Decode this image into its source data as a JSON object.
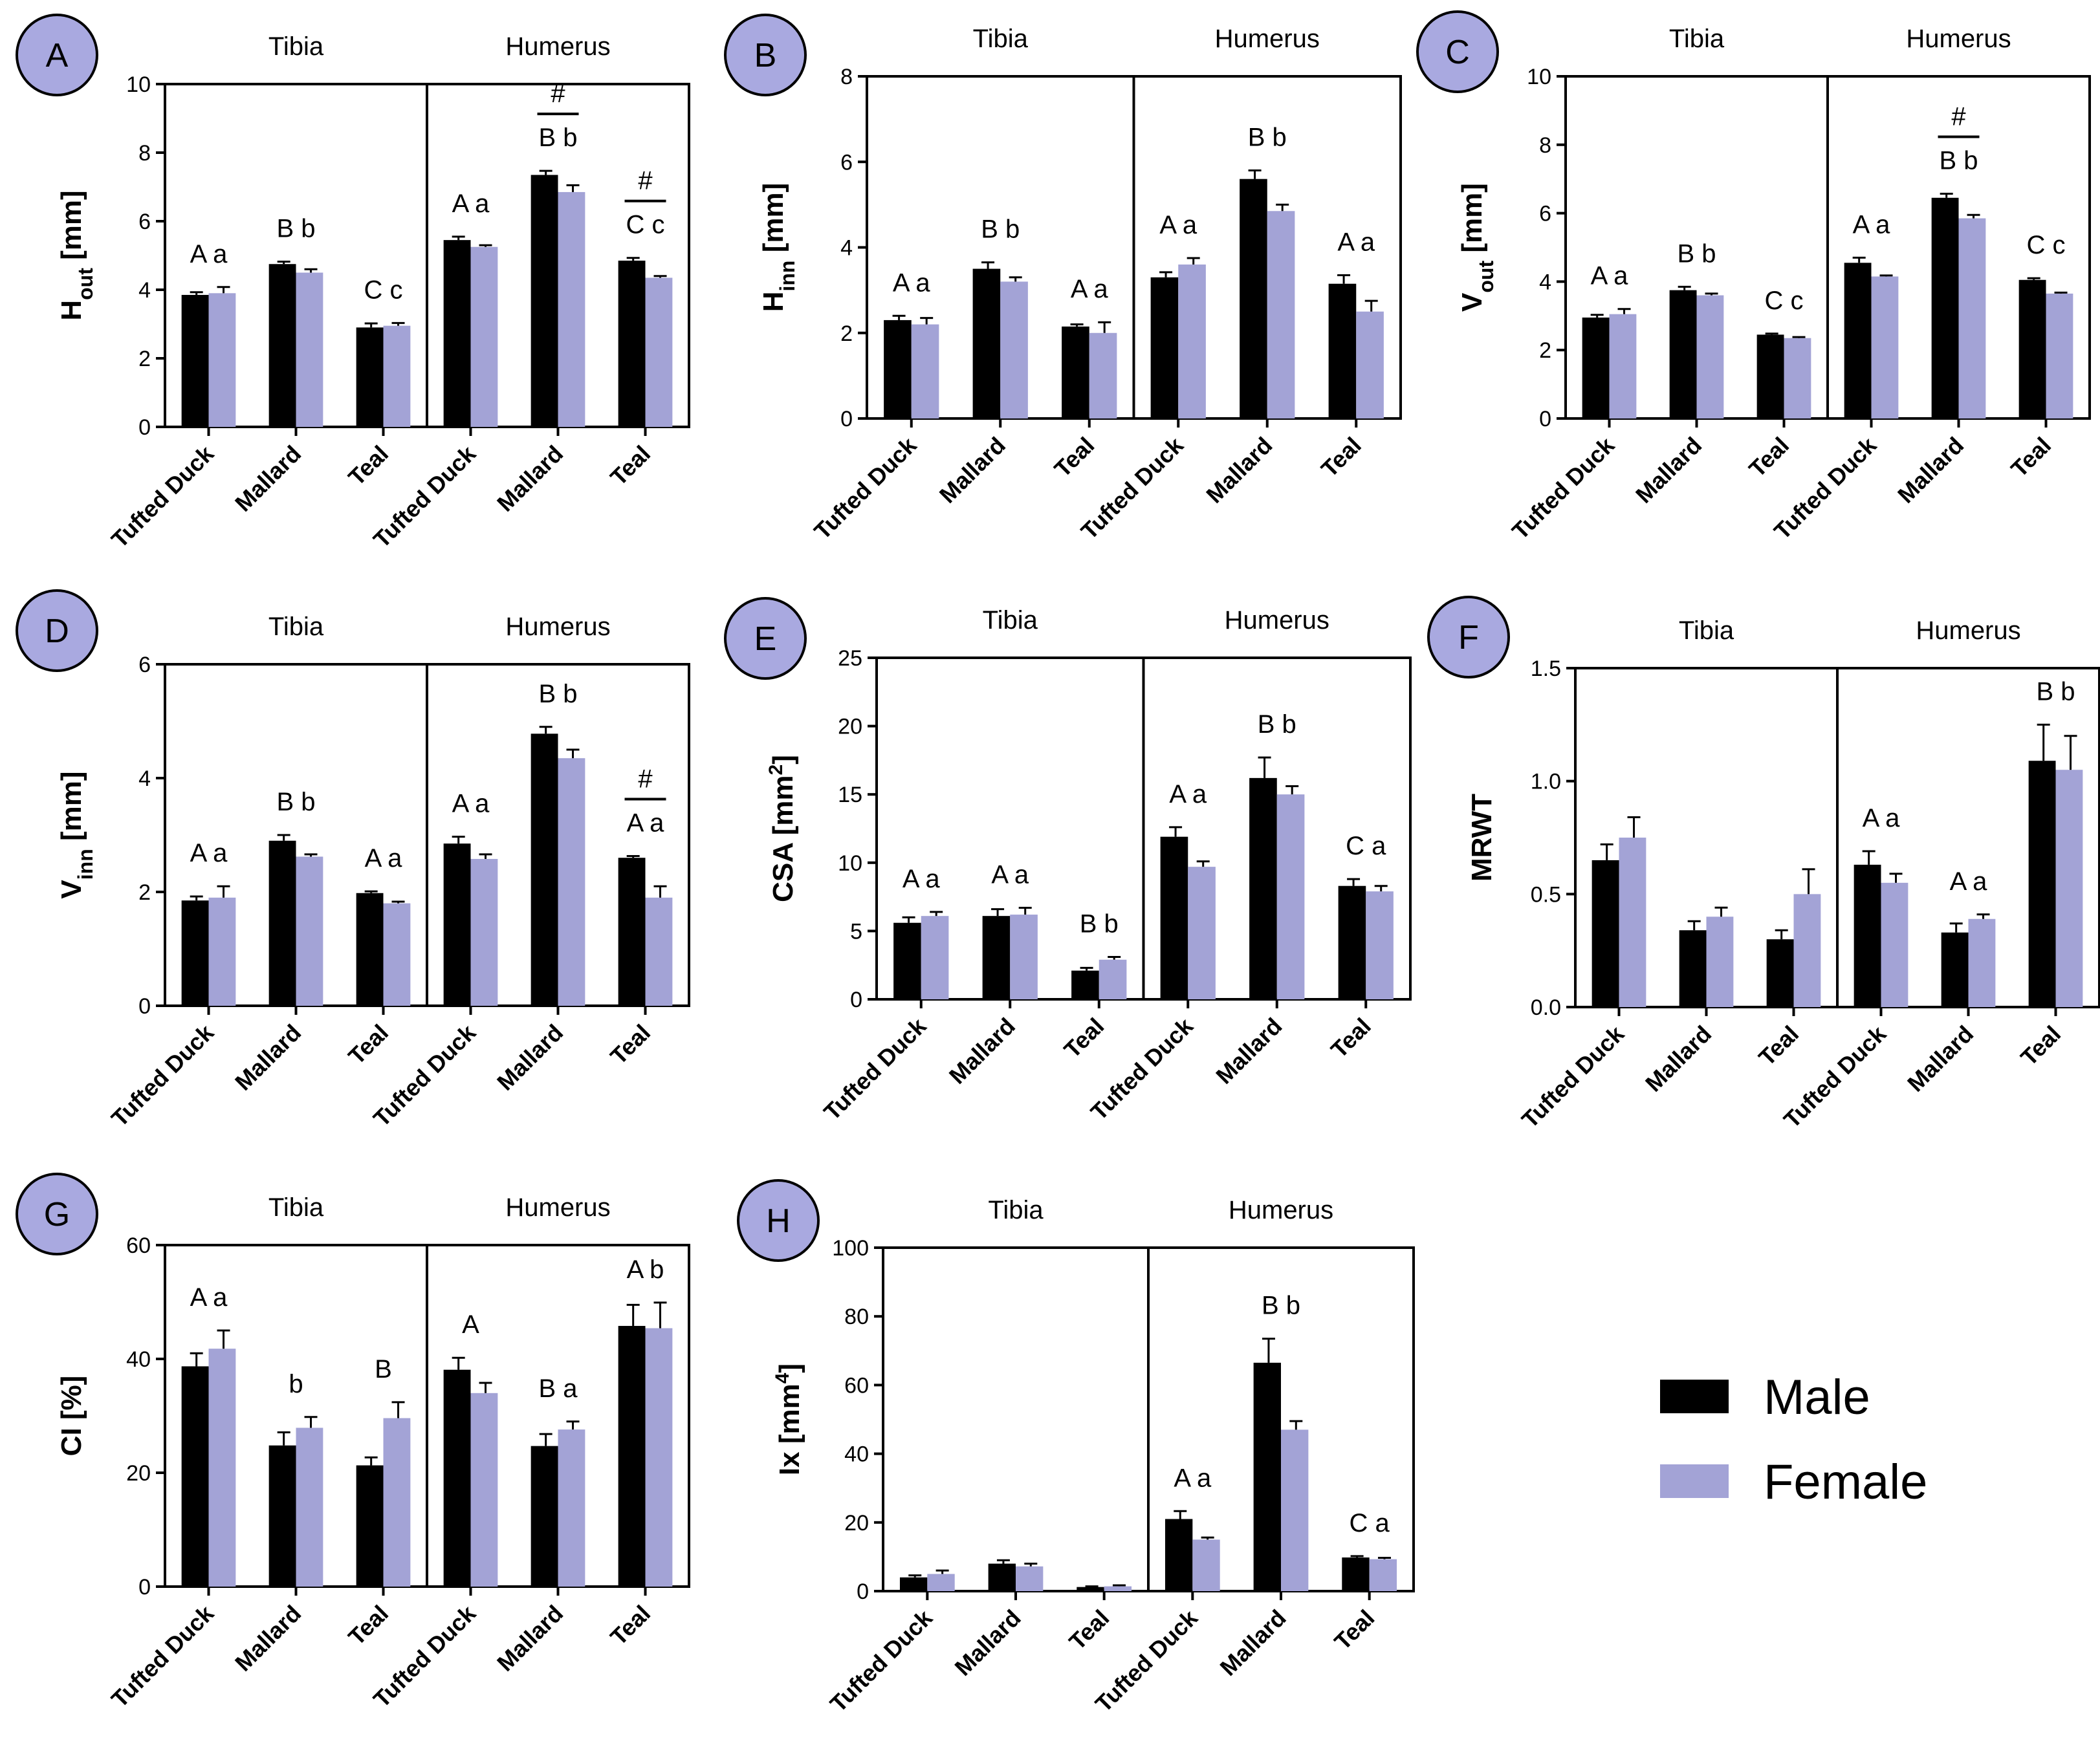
{
  "chart_data": [
    {
      "panel": "A",
      "type": "bar",
      "ylabel": "H",
      "ylabel_sub": "out",
      "ylabel_unit": " [mm]",
      "ylim": [
        0,
        10
      ],
      "yticks": [
        "0",
        "2",
        "4",
        "6",
        "8",
        "10"
      ],
      "groups": [
        "Tibia",
        "Humerus"
      ],
      "categories": [
        "Tufted Duck",
        "Mallard",
        "Teal",
        "Tufted Duck",
        "Mallard",
        "Teal"
      ],
      "series": [
        {
          "name": "Male",
          "values": [
            3.85,
            4.75,
            2.9,
            5.45,
            7.35,
            4.85
          ],
          "errors": [
            0.08,
            0.07,
            0.12,
            0.1,
            0.12,
            0.08
          ]
        },
        {
          "name": "Female",
          "values": [
            3.9,
            4.5,
            2.95,
            5.25,
            6.85,
            4.35
          ],
          "errors": [
            0.18,
            0.1,
            0.08,
            0.05,
            0.2,
            0.05
          ]
        }
      ],
      "letters": [
        "A a",
        "B b",
        "C c",
        "A a",
        "B b",
        "C c"
      ],
      "hash": [
        false,
        false,
        false,
        false,
        true,
        true
      ]
    },
    {
      "panel": "B",
      "type": "bar",
      "ylabel": "H",
      "ylabel_sub": "inn",
      "ylabel_unit": " [mm]",
      "ylim": [
        0,
        8
      ],
      "yticks": [
        "0",
        "2",
        "4",
        "6",
        "8"
      ],
      "groups": [
        "Tibia",
        "Humerus"
      ],
      "categories": [
        "Tufted Duck",
        "Mallard",
        "Teal",
        "Tufted Duck",
        "Mallard",
        "Teal"
      ],
      "series": [
        {
          "name": "Male",
          "values": [
            2.3,
            3.5,
            2.15,
            3.3,
            5.6,
            3.15
          ],
          "errors": [
            0.1,
            0.15,
            0.05,
            0.12,
            0.2,
            0.2
          ]
        },
        {
          "name": "Female",
          "values": [
            2.2,
            3.2,
            2.0,
            3.6,
            4.85,
            2.5
          ],
          "errors": [
            0.15,
            0.1,
            0.25,
            0.15,
            0.15,
            0.25
          ]
        }
      ],
      "letters": [
        "A a",
        "B b",
        "A a",
        "A a",
        "B b",
        "A a"
      ],
      "hash": [
        false,
        false,
        false,
        false,
        false,
        false
      ]
    },
    {
      "panel": "C",
      "type": "bar",
      "ylabel": "V",
      "ylabel_sub": "out",
      "ylabel_unit": " [mm]",
      "ylim": [
        0,
        10
      ],
      "yticks": [
        "0",
        "2",
        "4",
        "6",
        "8",
        "10"
      ],
      "groups": [
        "Tibia",
        "Humerus"
      ],
      "categories": [
        "Tufted Duck",
        "Mallard",
        "Teal",
        "Tufted Duck",
        "Mallard",
        "Teal"
      ],
      "series": [
        {
          "name": "Male",
          "values": [
            2.95,
            3.75,
            2.45,
            4.55,
            6.45,
            4.05
          ],
          "errors": [
            0.08,
            0.1,
            0.03,
            0.15,
            0.12,
            0.05
          ]
        },
        {
          "name": "Female",
          "values": [
            3.05,
            3.6,
            2.35,
            4.15,
            5.85,
            3.65
          ],
          "errors": [
            0.15,
            0.05,
            0.03,
            0.03,
            0.1,
            0.03
          ]
        }
      ],
      "letters": [
        "A a",
        "B b",
        "C c",
        "A a",
        "B b",
        "C c"
      ],
      "hash": [
        false,
        false,
        false,
        false,
        true,
        false
      ]
    },
    {
      "panel": "D",
      "type": "bar",
      "ylabel": "V",
      "ylabel_sub": "inn",
      "ylabel_unit": " [mm]",
      "ylim": [
        0,
        6
      ],
      "yticks": [
        "0",
        "2",
        "4",
        "6"
      ],
      "groups": [
        "Tibia",
        "Humerus"
      ],
      "categories": [
        "Tufted Duck",
        "Mallard",
        "Teal",
        "Tufted Duck",
        "Mallard",
        "Teal"
      ],
      "series": [
        {
          "name": "Male",
          "values": [
            1.85,
            2.9,
            1.98,
            2.85,
            4.78,
            2.6
          ],
          "errors": [
            0.07,
            0.1,
            0.03,
            0.12,
            0.12,
            0.03
          ]
        },
        {
          "name": "Female",
          "values": [
            1.9,
            2.62,
            1.8,
            2.58,
            4.35,
            1.9
          ],
          "errors": [
            0.2,
            0.04,
            0.03,
            0.08,
            0.15,
            0.2
          ]
        }
      ],
      "letters": [
        "A a",
        "B b",
        "A a",
        "A a",
        "B b",
        "A a"
      ],
      "hash": [
        false,
        false,
        false,
        false,
        false,
        true
      ]
    },
    {
      "panel": "E",
      "type": "bar",
      "ylabel": "CSA [mm",
      "ylabel_sup": "2",
      "ylabel_unit": "]",
      "ylim": [
        0,
        25
      ],
      "yticks": [
        "0",
        "5",
        "10",
        "15",
        "20",
        "25"
      ],
      "groups": [
        "Tibia",
        "Humerus"
      ],
      "categories": [
        "Tufted Duck",
        "Mallard",
        "Teal",
        "Tufted Duck",
        "Mallard",
        "Teal"
      ],
      "series": [
        {
          "name": "Male",
          "values": [
            5.6,
            6.1,
            2.1,
            11.9,
            16.2,
            8.3
          ],
          "errors": [
            0.4,
            0.5,
            0.2,
            0.7,
            1.5,
            0.5
          ]
        },
        {
          "name": "Female",
          "values": [
            6.1,
            6.2,
            2.9,
            9.7,
            15.0,
            7.9
          ],
          "errors": [
            0.3,
            0.5,
            0.2,
            0.4,
            0.6,
            0.4
          ]
        }
      ],
      "letters": [
        "A a",
        "A a",
        "B b",
        "A a",
        "B b",
        "C a"
      ],
      "hash": [
        false,
        false,
        false,
        false,
        false,
        false
      ]
    },
    {
      "panel": "F",
      "type": "bar",
      "ylabel": "MRWT",
      "ylim": [
        0,
        1.5
      ],
      "yticks": [
        "0.0",
        "0.5",
        "1.0",
        "1.5"
      ],
      "groups": [
        "Tibia",
        "Humerus"
      ],
      "categories": [
        "Tufted Duck",
        "Mallard",
        "Teal",
        "Tufted Duck",
        "Mallard",
        "Teal"
      ],
      "series": [
        {
          "name": "Male",
          "values": [
            0.65,
            0.34,
            0.3,
            0.63,
            0.33,
            1.09
          ],
          "errors": [
            0.07,
            0.04,
            0.04,
            0.06,
            0.04,
            0.16
          ]
        },
        {
          "name": "Female",
          "values": [
            0.75,
            0.4,
            0.5,
            0.55,
            0.39,
            1.05
          ],
          "errors": [
            0.09,
            0.04,
            0.11,
            0.04,
            0.02,
            0.15
          ]
        }
      ],
      "letters": [
        "",
        "",
        "",
        "A a",
        "A a",
        "B b"
      ],
      "hash": [
        false,
        false,
        false,
        false,
        false,
        false
      ]
    },
    {
      "panel": "G",
      "type": "bar",
      "ylabel": "CI [%]",
      "ylim": [
        0,
        60
      ],
      "yticks": [
        "0",
        "20",
        "40",
        "60"
      ],
      "groups": [
        "Tibia",
        "Humerus"
      ],
      "categories": [
        "Tufted Duck",
        "Mallard",
        "Teal",
        "Tufted Duck",
        "Mallard",
        "Teal"
      ],
      "series": [
        {
          "name": "Male",
          "values": [
            38.7,
            24.8,
            21.3,
            38.1,
            24.7,
            45.8
          ],
          "errors": [
            2.3,
            2.3,
            1.4,
            2.1,
            2.1,
            3.7
          ]
        },
        {
          "name": "Female",
          "values": [
            41.8,
            27.9,
            29.6,
            34.0,
            27.6,
            45.4
          ],
          "errors": [
            3.2,
            1.9,
            2.8,
            1.8,
            1.4,
            4.5
          ]
        }
      ],
      "letters": [
        "A a",
        "b",
        "B",
        "A",
        "B a",
        "A b"
      ],
      "hash": [
        false,
        false,
        false,
        false,
        false,
        false
      ]
    },
    {
      "panel": "H",
      "type": "bar",
      "ylabel": "Ix [mm",
      "ylabel_sup": "4",
      "ylabel_unit": "]",
      "ylim": [
        0,
        100
      ],
      "yticks": [
        "0",
        "20",
        "40",
        "60",
        "80",
        "100"
      ],
      "groups": [
        "Tibia",
        "Humerus"
      ],
      "categories": [
        "Tufted Duck",
        "Mallard",
        "Teal",
        "Tufted Duck",
        "Mallard",
        "Teal"
      ],
      "series": [
        {
          "name": "Male",
          "values": [
            4.0,
            8.0,
            1.2,
            21.0,
            66.5,
            9.8
          ],
          "errors": [
            0.6,
            1.0,
            0.2,
            2.3,
            7.0,
            0.4
          ]
        },
        {
          "name": "Female",
          "values": [
            5.0,
            7.2,
            1.4,
            15.0,
            47.0,
            9.3
          ],
          "errors": [
            1.0,
            0.8,
            0.3,
            0.6,
            2.5,
            0.4
          ]
        }
      ],
      "letters": [
        "",
        "",
        "",
        "A a",
        "B b",
        "C a"
      ],
      "hash": [
        false,
        false,
        false,
        false,
        false,
        false
      ]
    }
  ],
  "hash_symbol": "#",
  "legend": {
    "male_label": "Male",
    "female_label": "Female",
    "male_color": "#000000",
    "female_color": "#a3a3d6"
  },
  "badge_color": "#a9a9e0"
}
